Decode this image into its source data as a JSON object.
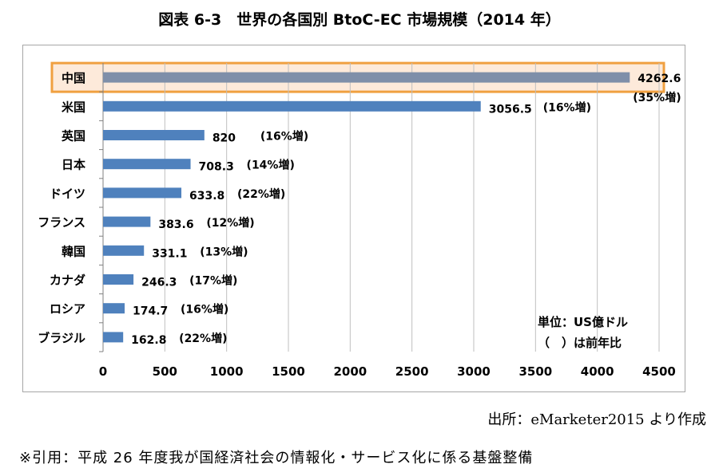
{
  "page": {
    "title": "図表 6-3　世界の各国別 BtoC-EC 市場規模（2014 年）",
    "source": "出所：eMarketer2015 より作成",
    "citation": "※引用：平成 26 年度我が国経済社会の情報化・サービス化に係る基盤整備",
    "unit_note": "単位：US億ドル",
    "ratio_note": "（　）は前年比"
  },
  "colors": {
    "bar": "#4f81bd",
    "highlight_bar": "#7f8fa9",
    "highlight_fill": "#fdeada",
    "highlight_border": "#f0a040",
    "grid": "#bfbfbf"
  },
  "chart_data": {
    "type": "bar",
    "orientation": "horizontal",
    "categories": [
      "中国",
      "米国",
      "英国",
      "日本",
      "ドイツ",
      "フランス",
      "韓国",
      "カナダ",
      "ロシア",
      "ブラジル"
    ],
    "values": [
      4262.6,
      3056.5,
      820,
      708.3,
      633.8,
      383.6,
      331.1,
      246.3,
      174.7,
      162.8
    ],
    "value_labels": [
      "4262.6",
      "3056.5",
      "820",
      "708.3",
      "633.8",
      "383.6",
      "331.1",
      "246.3",
      "174.7",
      "162.8"
    ],
    "growth_labels": [
      "(35%増)",
      "(16%増)",
      "(16%増)",
      "(14%増)",
      "(22%増)",
      "(12%増)",
      "(13%増)",
      "(17%増)",
      "(16%増)",
      "(22%増)"
    ],
    "highlighted_category": "中国",
    "xlim": [
      0,
      4500
    ],
    "xticks": [
      0,
      500,
      1000,
      1500,
      2000,
      2500,
      3000,
      3500,
      4000,
      4500
    ],
    "grid": true,
    "legend": false
  }
}
